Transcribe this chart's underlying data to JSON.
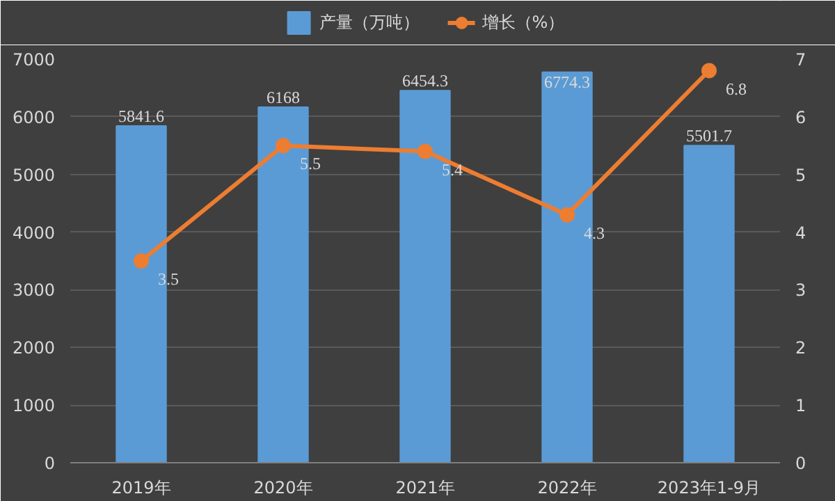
{
  "chart_data": {
    "type": "bar",
    "categories": [
      "2019年",
      "2020年",
      "2021年",
      "2022年",
      "2023年1-9月"
    ],
    "series": [
      {
        "name": "产量（万吨）",
        "color": "#5b9bd5",
        "values": [
          5841.6,
          6168,
          6454.3,
          6774.3,
          5501.7
        ]
      },
      {
        "name": "增长（%）",
        "type": "line",
        "axis": "y2",
        "color": "#ed7d31",
        "values": [
          3.5,
          5.5,
          5.4,
          4.3,
          6.8
        ]
      }
    ],
    "ylim": [
      0,
      7000
    ],
    "yticks": [
      0,
      1000,
      2000,
      3000,
      4000,
      5000,
      6000,
      7000
    ],
    "y2lim": [
      0,
      7
    ],
    "y2ticks": [
      0,
      1,
      2,
      3,
      4,
      5,
      6,
      7
    ],
    "grid": "y",
    "legend": "top",
    "marker": "circle",
    "data_labels": true
  }
}
